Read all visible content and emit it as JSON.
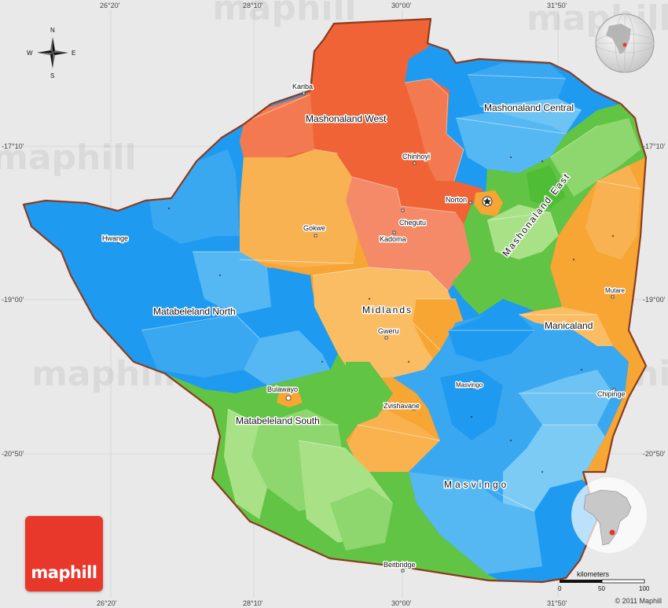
{
  "map": {
    "brand": "maphill",
    "copyright": "© 2011 Maphill",
    "watermark": "maphill",
    "compass": {
      "n": "N",
      "s": "S",
      "e": "E",
      "w": "W"
    },
    "coords": {
      "top": [
        "26°20'",
        "28°10'",
        "30°00'",
        "31°50'"
      ],
      "bottom": [
        "26°20'",
        "28°10'",
        "30°00'",
        "31°50'"
      ],
      "left": [
        "-17°10'",
        "-19°00'",
        "-20°50'"
      ],
      "right": [
        "-17°10'",
        "-19°00'",
        "-20°50'"
      ]
    },
    "provinces": {
      "mashonaland_west": "Mashonaland West",
      "mashonaland_central": "Mashonaland Central",
      "mashonaland_east": "Mashonaland East",
      "matabeleland_north": "Matabeleland North",
      "matabeleland_south": "Matabeleland South",
      "midlands": "Midlands",
      "manicaland": "Manicaland",
      "masvingo": "Masvingo"
    },
    "cities": {
      "kariba": "Kariba",
      "chinhoyi": "Chinhoyi",
      "norton": "Norton",
      "chegutu": "Chegutu",
      "kadoma": "Kadoma",
      "gokwe": "Gokwe",
      "hwange": "Hwange",
      "gweru": "Gweru",
      "bulawayo": "Bulawayo",
      "zvishavane": "Zvishavane",
      "masvingo": "Masvingo",
      "mutare": "Mutare",
      "chipinge": "Chipinge",
      "beitbridge": "Beitbridge"
    },
    "scale": {
      "title": "kilometers",
      "ticks": [
        "0",
        "50",
        "100"
      ]
    },
    "colors": {
      "background": "#e9e9e9",
      "border": "#8b3a1e",
      "blue": "#1e9bf0",
      "light_blue": "#6cc3f4",
      "orange": "#f7a533",
      "red_orange": "#f06336",
      "salmon": "#f58a68",
      "green": "#62c445",
      "light_green": "#a9e186",
      "brand_red": "#e8382b"
    }
  }
}
